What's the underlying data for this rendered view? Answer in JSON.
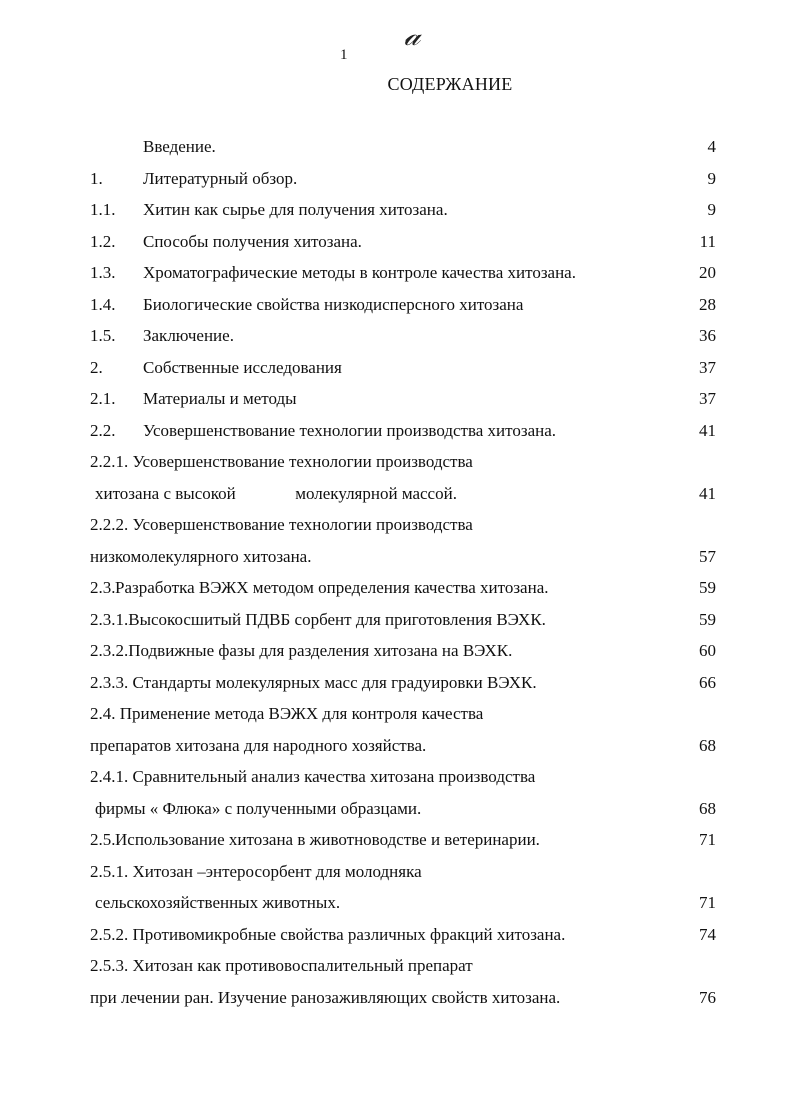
{
  "header": {
    "handwritten_mark": "a",
    "page_number": "1",
    "title": "СОДЕРЖАНИЕ"
  },
  "entries": [
    {
      "num": "",
      "text": "Введение.",
      "page": "4"
    },
    {
      "num": "1.",
      "text": "Литературный обзор.",
      "page": "9"
    },
    {
      "num": "1.1.",
      "text": "Хитин как сырье для получения хитозана.",
      "page": "9"
    },
    {
      "num": "1.2.",
      "text": "Способы получения хитозана.",
      "page": "11"
    },
    {
      "num": "1.3.",
      "text": "Хроматографические методы в контроле качества хитозана.",
      "page": "20"
    },
    {
      "num": "1.4.",
      "text": "Биологические свойства низкодисперсного хитозана",
      "page": "28"
    },
    {
      "num": "1.5.",
      "text": "Заключение.",
      "page": "36"
    },
    {
      "num": "2.",
      "text": "Собственные исследования",
      "page": "37"
    },
    {
      "num": "2.1.",
      "text": "Материалы и методы",
      "page": "37"
    },
    {
      "num": "2.2.",
      "text": "Усовершенствование технологии производства хитозана.",
      "page": "41"
    },
    {
      "num": "",
      "text": "2.2.1. Усовершенствование технологии производства",
      "page": "",
      "style": "full"
    },
    {
      "num": "",
      "text": "хитозана с высокой              молекулярной массой.",
      "page": "41",
      "style": "indent"
    },
    {
      "num": "",
      "text": "2.2.2. Усовершенствование технологии производства",
      "page": "",
      "style": "full"
    },
    {
      "num": "",
      "text": "низкомолекулярного хитозана.",
      "page": "57",
      "style": "full"
    },
    {
      "num": "2.3.",
      "text": "Разработка ВЭЖХ методом определения качества хитозана.",
      "page": "59",
      "style": "tight"
    },
    {
      "num": "",
      "text": "2.3.1.Высокосшитый ПДВБ сорбент для приготовления ВЭХК.",
      "page": "59",
      "style": "full"
    },
    {
      "num": "",
      "text": "2.3.2.Подвижные фазы для разделения хитозана на ВЭХК.",
      "page": "60",
      "style": "full"
    },
    {
      "num": "",
      "text": "2.3.3. Стандарты молекулярных масс для градуировки ВЭХК.",
      "page": "66",
      "style": "full"
    },
    {
      "num": "",
      "text": "2.4. Применение метода ВЭЖХ для контроля качества",
      "page": "",
      "style": "full"
    },
    {
      "num": "",
      "text": "препаратов хитозана для народного хозяйства.",
      "page": "68",
      "style": "full"
    },
    {
      "num": "",
      "text": "2.4.1. Сравнительный анализ качества хитозана производства",
      "page": "",
      "style": "full"
    },
    {
      "num": "",
      "text": "фирмы « Флюка» с полученными образцами.",
      "page": "68",
      "style": "indent"
    },
    {
      "num": "2.5.",
      "text": "Использование хитозана в животноводстве и ветеринарии.",
      "page": "71",
      "style": "tight"
    },
    {
      "num": "",
      "text": "2.5.1. Хитозан –энтеросорбент для молодняка",
      "page": "",
      "style": "full"
    },
    {
      "num": "",
      "text": "сельскохозяйственных животных.",
      "page": "71",
      "style": "indent"
    },
    {
      "num": "",
      "text": "2.5.2. Противомикробные свойства различных фракций хитозана.",
      "page": "74",
      "style": "full"
    },
    {
      "num": "",
      "text": "2.5.3. Хитозан как противовоспалительный препарат",
      "page": "",
      "style": "full"
    },
    {
      "num": "",
      "text": "при лечении ран. Изучение ранозаживляющих свойств хитозана.",
      "page": "76",
      "style": "full"
    }
  ]
}
